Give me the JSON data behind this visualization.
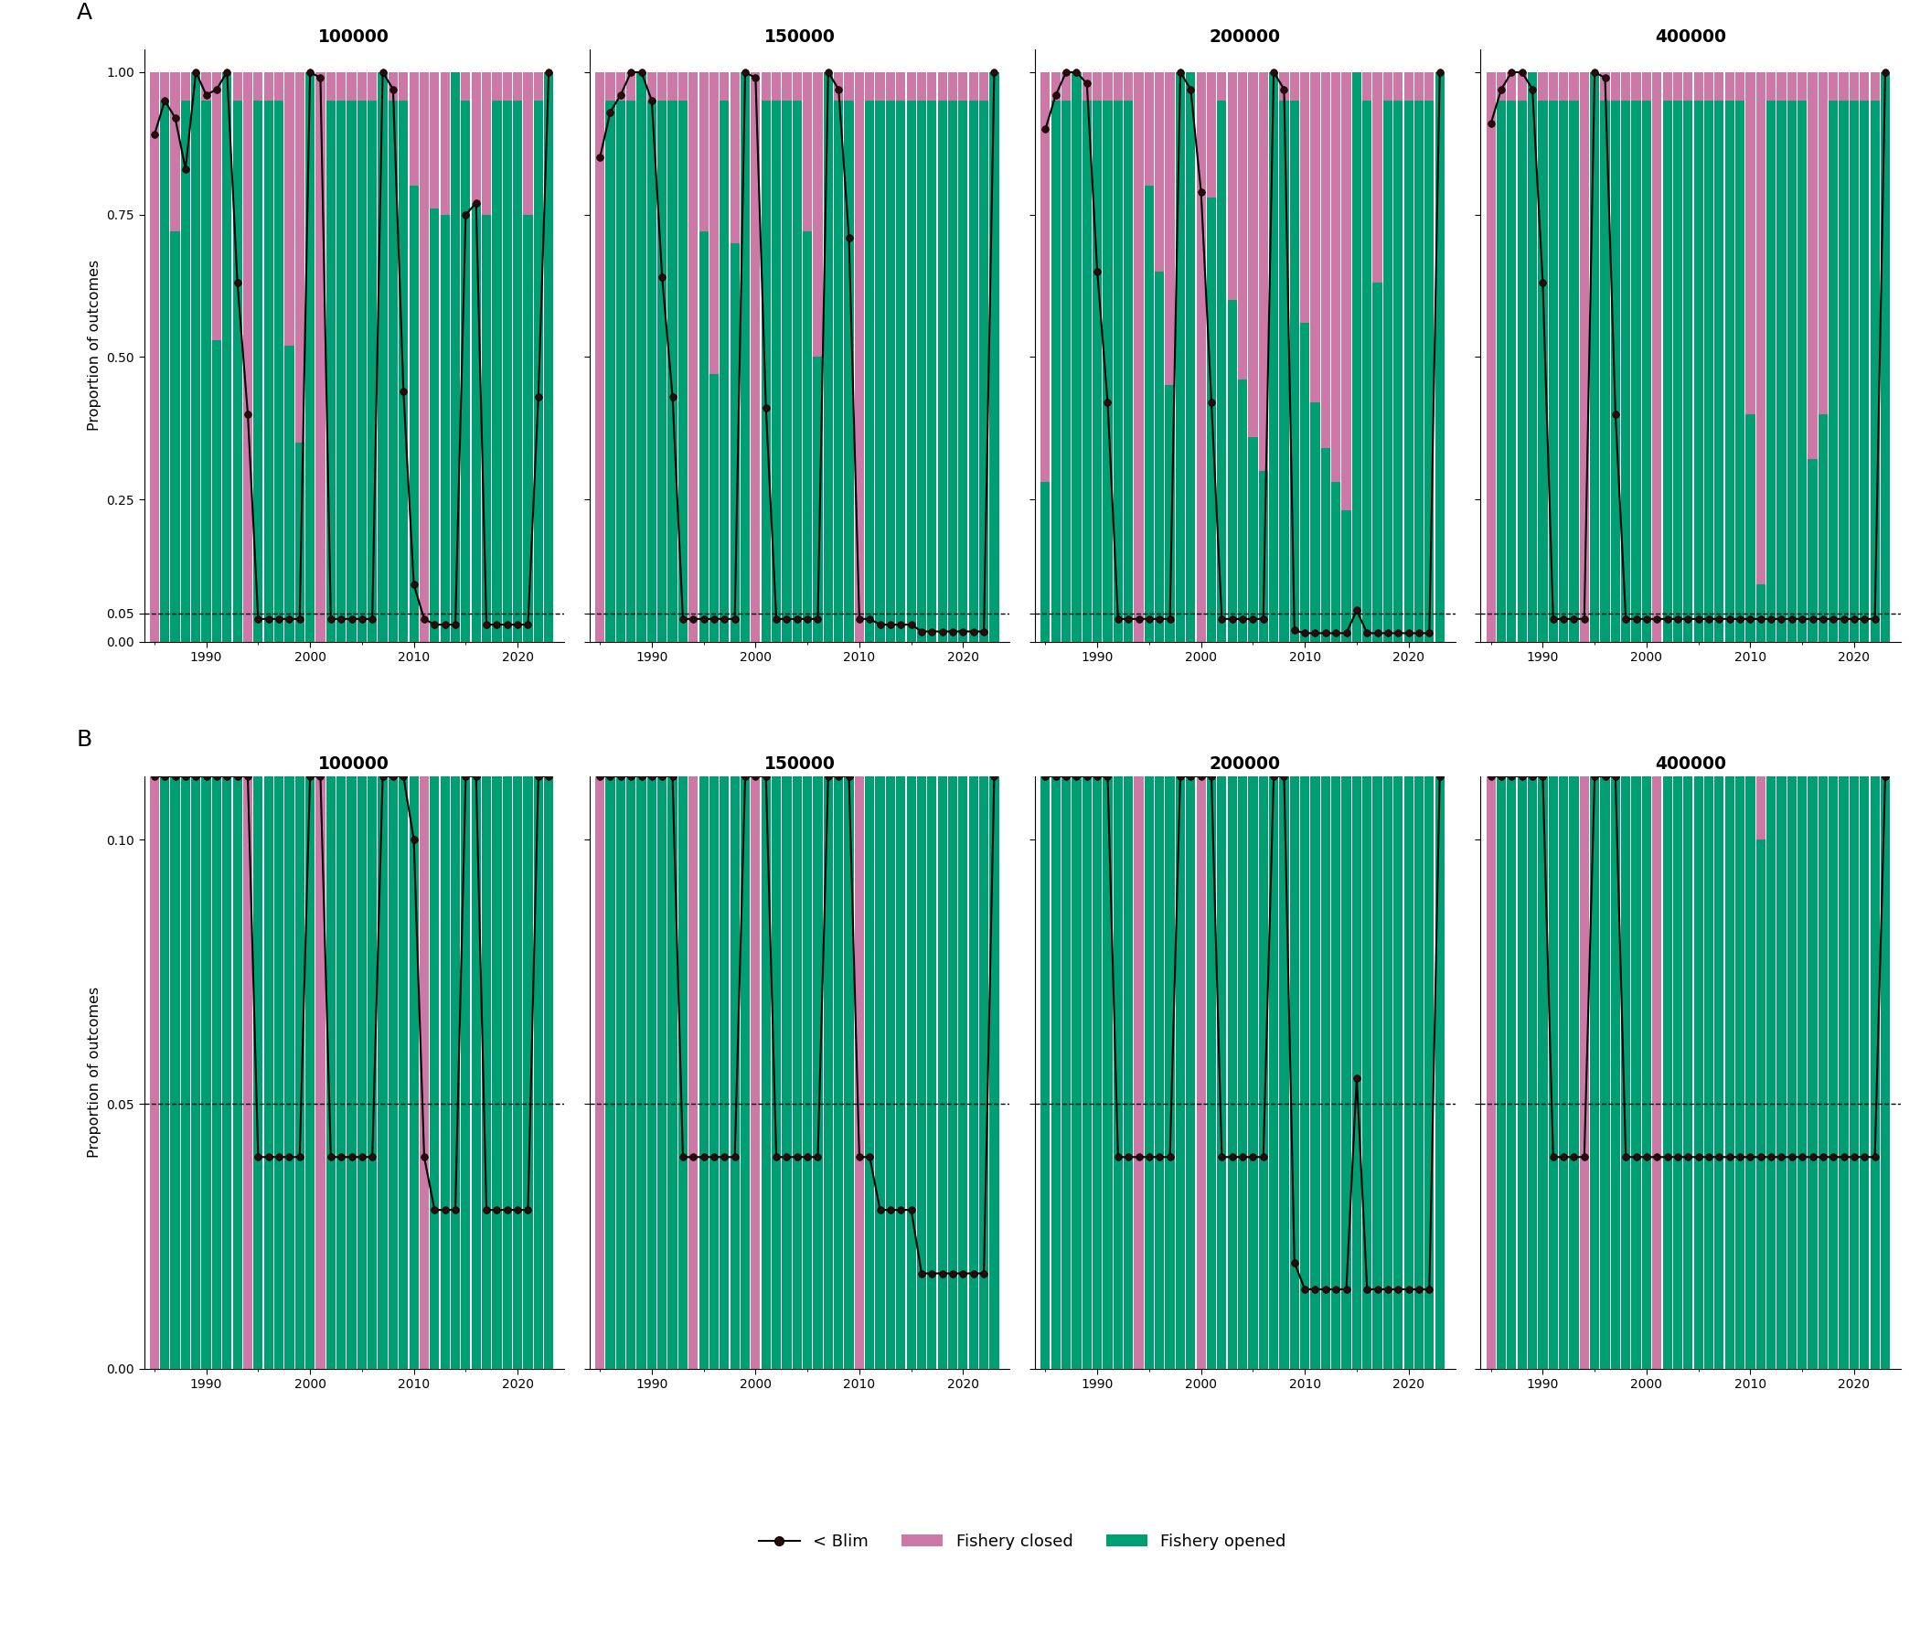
{
  "years": [
    1985,
    1986,
    1987,
    1988,
    1989,
    1990,
    1991,
    1992,
    1993,
    1994,
    1995,
    1996,
    1997,
    1998,
    1999,
    2000,
    2001,
    2002,
    2003,
    2004,
    2005,
    2006,
    2007,
    2008,
    2009,
    2010,
    2011,
    2012,
    2013,
    2014,
    2015,
    2016,
    2017,
    2018,
    2019,
    2020,
    2021,
    2022,
    2023
  ],
  "panels": [
    "100000",
    "150000",
    "200000",
    "400000"
  ],
  "fishery_open_frac": {
    "100000": [
      0.0,
      0.95,
      0.72,
      0.95,
      1.0,
      0.95,
      0.53,
      1.0,
      0.95,
      0.0,
      0.95,
      0.95,
      0.95,
      0.52,
      0.35,
      1.0,
      0.0,
      0.95,
      0.95,
      0.95,
      0.95,
      0.95,
      1.0,
      0.95,
      0.95,
      0.8,
      0.0,
      0.76,
      0.75,
      1.0,
      0.95,
      0.77,
      0.75,
      0.95,
      0.95,
      0.95,
      0.75,
      0.95,
      1.0
    ],
    "150000": [
      0.0,
      0.95,
      0.95,
      0.95,
      1.0,
      0.95,
      0.95,
      0.95,
      0.95,
      0.0,
      0.72,
      0.47,
      0.95,
      0.7,
      1.0,
      0.0,
      0.95,
      0.95,
      0.95,
      0.95,
      0.72,
      0.5,
      1.0,
      0.95,
      0.95,
      0.0,
      0.95,
      0.95,
      0.95,
      0.95,
      0.95,
      0.95,
      0.95,
      0.95,
      0.95,
      0.95,
      0.95,
      0.95,
      1.0
    ],
    "200000": [
      0.28,
      0.95,
      0.95,
      1.0,
      0.95,
      0.95,
      0.95,
      0.95,
      0.95,
      0.0,
      0.8,
      0.65,
      0.45,
      1.0,
      1.0,
      0.0,
      0.78,
      0.95,
      0.6,
      0.46,
      0.36,
      0.3,
      1.0,
      0.95,
      0.95,
      0.56,
      0.42,
      0.34,
      0.28,
      0.23,
      1.0,
      0.95,
      0.63,
      0.95,
      0.95,
      0.95,
      0.95,
      0.95,
      1.0
    ],
    "400000": [
      0.0,
      0.95,
      0.95,
      0.95,
      1.0,
      0.95,
      0.95,
      0.95,
      0.95,
      0.0,
      1.0,
      0.95,
      0.95,
      0.95,
      0.95,
      0.95,
      0.0,
      0.95,
      0.95,
      0.95,
      0.95,
      0.95,
      0.95,
      0.95,
      0.95,
      0.4,
      0.1,
      0.95,
      0.95,
      0.95,
      0.95,
      0.32,
      0.4,
      0.95,
      0.95,
      0.95,
      0.95,
      0.95,
      1.0
    ]
  },
  "blim_prob": {
    "100000": [
      0.89,
      0.95,
      0.92,
      0.83,
      1.0,
      0.96,
      0.97,
      1.0,
      0.63,
      0.4,
      0.04,
      0.04,
      0.04,
      0.04,
      0.04,
      1.0,
      0.99,
      0.04,
      0.04,
      0.04,
      0.04,
      0.04,
      1.0,
      0.97,
      0.44,
      0.1,
      0.04,
      0.03,
      0.03,
      0.03,
      0.75,
      0.77,
      0.03,
      0.03,
      0.03,
      0.03,
      0.03,
      0.43,
      1.0
    ],
    "150000": [
      0.85,
      0.93,
      0.96,
      1.0,
      1.0,
      0.95,
      0.64,
      0.43,
      0.04,
      0.04,
      0.04,
      0.04,
      0.04,
      0.04,
      1.0,
      0.99,
      0.41,
      0.04,
      0.04,
      0.04,
      0.04,
      0.04,
      1.0,
      0.97,
      0.71,
      0.04,
      0.04,
      0.03,
      0.03,
      0.03,
      0.03,
      0.018,
      0.018,
      0.018,
      0.018,
      0.018,
      0.018,
      0.018,
      1.0
    ],
    "200000": [
      0.9,
      0.96,
      1.0,
      1.0,
      0.98,
      0.65,
      0.42,
      0.04,
      0.04,
      0.04,
      0.04,
      0.04,
      0.04,
      1.0,
      0.97,
      0.79,
      0.42,
      0.04,
      0.04,
      0.04,
      0.04,
      0.04,
      1.0,
      0.97,
      0.02,
      0.015,
      0.015,
      0.015,
      0.015,
      0.015,
      0.055,
      0.015,
      0.015,
      0.015,
      0.015,
      0.015,
      0.015,
      0.015,
      1.0
    ],
    "400000": [
      0.91,
      0.97,
      1.0,
      1.0,
      0.97,
      0.63,
      0.04,
      0.04,
      0.04,
      0.04,
      1.0,
      0.99,
      0.4,
      0.04,
      0.04,
      0.04,
      0.04,
      0.04,
      0.04,
      0.04,
      0.04,
      0.04,
      0.04,
      0.04,
      0.04,
      0.04,
      0.04,
      0.04,
      0.04,
      0.04,
      0.04,
      0.04,
      0.04,
      0.04,
      0.04,
      0.04,
      0.04,
      0.04,
      1.0
    ]
  },
  "color_closed": "#CC79A7",
  "color_open": "#009E73",
  "dashed_line_y": 0.05,
  "row_A_ylim": [
    0.0,
    1.04
  ],
  "row_B_ylim": [
    0.0,
    0.112
  ],
  "row_A_yticks": [
    0.0,
    0.05,
    0.25,
    0.5,
    0.75,
    1.0
  ],
  "row_B_yticks": [
    0.0,
    0.05,
    0.1
  ],
  "ylabel": "Proportion of outcomes",
  "panel_labels": [
    "100000",
    "150000",
    "200000",
    "400000"
  ],
  "row_labels": [
    "A",
    "B"
  ]
}
